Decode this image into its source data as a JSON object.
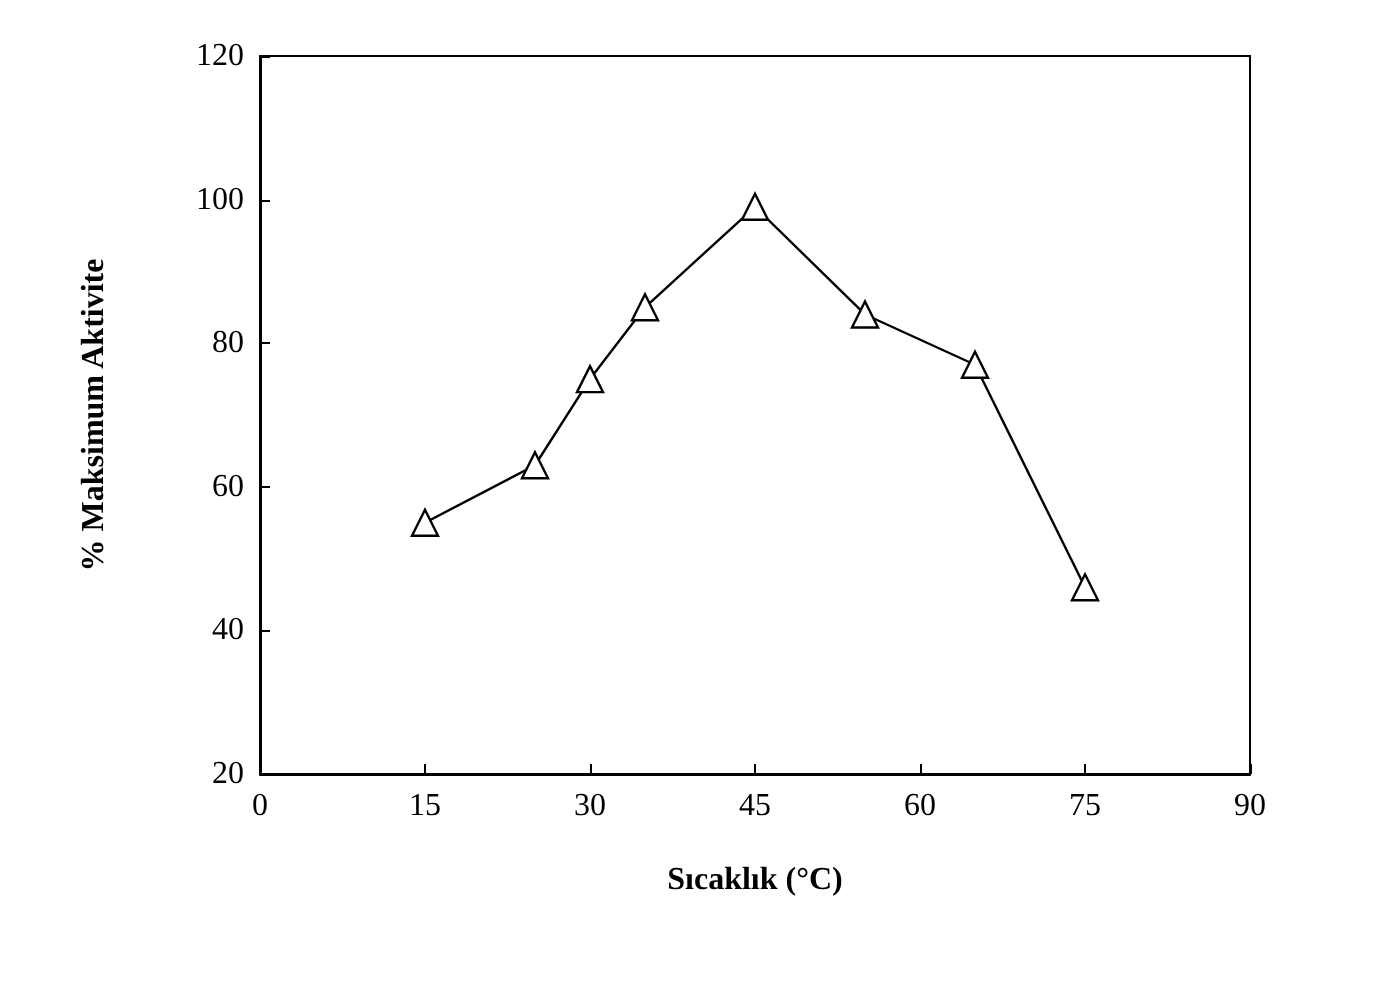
{
  "chart_data": {
    "type": "line",
    "xlabel": "Sıcaklık (°C)",
    "ylabel": "% Maksimum Aktivite",
    "x": [
      15,
      25,
      30,
      35,
      45,
      55,
      65,
      75
    ],
    "series": [
      {
        "color": "#000000",
        "values": [
          55,
          63,
          75,
          85,
          99,
          84,
          77,
          46
        ]
      }
    ],
    "xlim": [
      0,
      90
    ],
    "xticks": [
      0,
      15,
      30,
      45,
      60,
      75,
      90
    ],
    "ylim": [
      20,
      120
    ],
    "yticks": [
      20,
      40,
      60,
      80,
      100,
      120
    ],
    "grid": false,
    "marker": "triangle",
    "line_style": "solid"
  }
}
